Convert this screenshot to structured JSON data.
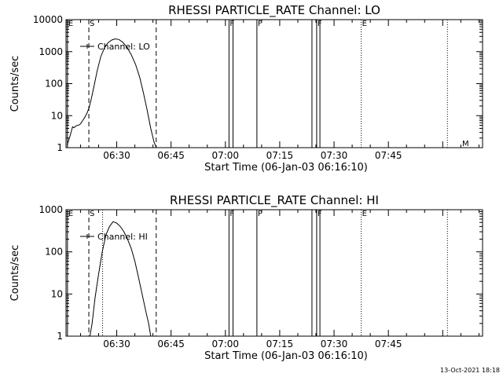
{
  "chart_data": [
    {
      "type": "line",
      "title": "RHESSI PARTICLE_RATE Channel: LO",
      "xlabel": "Start Time (06-Jan-03 06:16:10)",
      "ylabel": "Counts/sec",
      "xlim_min": [
        376,
        491
      ],
      "yscale": "log",
      "ylim": [
        1,
        10000
      ],
      "xticks": [
        {
          "label": "06:30",
          "min": 390
        },
        {
          "label": "06:45",
          "min": 405
        },
        {
          "label": "07:00",
          "min": 420
        },
        {
          "label": "07:15",
          "min": 435
        },
        {
          "label": "07:30",
          "min": 450
        },
        {
          "label": "07:45",
          "min": 465
        }
      ],
      "yticks": [
        {
          "label": "1",
          "v": 1
        },
        {
          "label": "10",
          "v": 10
        },
        {
          "label": "100",
          "v": 100
        },
        {
          "label": "1000",
          "v": 1000
        },
        {
          "label": "10000",
          "v": 10000
        }
      ],
      "legend": {
        "label": "Channel: LO",
        "position": "top-left"
      },
      "series": [
        {
          "name": "Channel: LO",
          "x": [
            376.3,
            377.2,
            377.8,
            378.2,
            378.8,
            379.4,
            380.0,
            380.6,
            381.2,
            381.8,
            382.4,
            383.0,
            383.8,
            384.6,
            385.6,
            386.6,
            387.6,
            388.6,
            389.6,
            390.6,
            391.6,
            392.8,
            394.0,
            395.2,
            396.4,
            397.4,
            398.4,
            399.4,
            400.3,
            400.9
          ],
          "y": [
            1.2,
            2.5,
            4.5,
            4.2,
            4.8,
            5.0,
            5.5,
            7.0,
            9.0,
            12,
            18,
            35,
            90,
            250,
            700,
            1300,
            1900,
            2300,
            2500,
            2400,
            2000,
            1400,
            800,
            400,
            150,
            50,
            15,
            4,
            1.5,
            1.0
          ]
        }
      ],
      "flag_lines": [
        {
          "min": 382.3,
          "style": "dashed",
          "label": "S"
        },
        {
          "min": 400.9,
          "style": "dashed",
          "label": ""
        },
        {
          "min": 376.4,
          "style": "solid",
          "label": "E"
        },
        {
          "min": 421.0,
          "style": "solid",
          "label": "F"
        },
        {
          "min": 422.1,
          "style": "solid",
          "label": ""
        },
        {
          "min": 428.7,
          "style": "solid",
          "label": "F"
        },
        {
          "min": 443.9,
          "style": "solid",
          "label": ""
        },
        {
          "min": 445.2,
          "style": "solid",
          "label": "F"
        },
        {
          "min": 446.1,
          "style": "solid",
          "label": ""
        },
        {
          "min": 457.5,
          "style": "dotted",
          "label": "E"
        },
        {
          "min": 481.3,
          "style": "dotted",
          "label": ""
        }
      ],
      "corner_label": "M"
    },
    {
      "type": "line",
      "title": "RHESSI PARTICLE_RATE Channel: HI",
      "xlabel": "Start Time (06-Jan-03 06:16:10)",
      "ylabel": "Counts/sec",
      "xlim_min": [
        376,
        491
      ],
      "yscale": "log",
      "ylim": [
        1,
        1000
      ],
      "xticks": [
        {
          "label": "06:30",
          "min": 390
        },
        {
          "label": "06:45",
          "min": 405
        },
        {
          "label": "07:00",
          "min": 420
        },
        {
          "label": "07:15",
          "min": 435
        },
        {
          "label": "07:30",
          "min": 450
        },
        {
          "label": "07:45",
          "min": 465
        }
      ],
      "yticks": [
        {
          "label": "1",
          "v": 1
        },
        {
          "label": "10",
          "v": 10
        },
        {
          "label": "100",
          "v": 100
        },
        {
          "label": "1000",
          "v": 1000
        }
      ],
      "legend": {
        "label": "Channel: HI",
        "position": "top-left"
      },
      "series": [
        {
          "name": "Channel: HI",
          "x": [
            382.6,
            383.2,
            384.0,
            385.0,
            386.0,
            387.0,
            388.0,
            389.0,
            390.0,
            391.0,
            392.0,
            393.0,
            394.0,
            395.0,
            396.0,
            397.0,
            398.0,
            398.8,
            399.4
          ],
          "y": [
            1.0,
            2.0,
            8,
            30,
            100,
            250,
            400,
            520,
            480,
            400,
            300,
            200,
            120,
            60,
            25,
            10,
            4,
            2,
            1.0
          ]
        }
      ],
      "flag_lines": [
        {
          "min": 382.3,
          "style": "dashed",
          "label": "S"
        },
        {
          "min": 400.9,
          "style": "dashed",
          "label": ""
        },
        {
          "min": 376.4,
          "style": "solid",
          "label": "E"
        },
        {
          "min": 421.0,
          "style": "solid",
          "label": "F"
        },
        {
          "min": 422.1,
          "style": "solid",
          "label": ""
        },
        {
          "min": 428.7,
          "style": "solid",
          "label": "P"
        },
        {
          "min": 443.9,
          "style": "solid",
          "label": ""
        },
        {
          "min": 445.2,
          "style": "solid",
          "label": "F"
        },
        {
          "min": 446.1,
          "style": "solid",
          "label": ""
        },
        {
          "min": 457.5,
          "style": "dotted",
          "label": "E"
        },
        {
          "min": 481.3,
          "style": "dotted",
          "label": ""
        },
        {
          "min": 386.1,
          "style": "dotted",
          "label": ""
        }
      ]
    }
  ],
  "footer": {
    "timestamp": "13-Oct-2021 18:18"
  }
}
